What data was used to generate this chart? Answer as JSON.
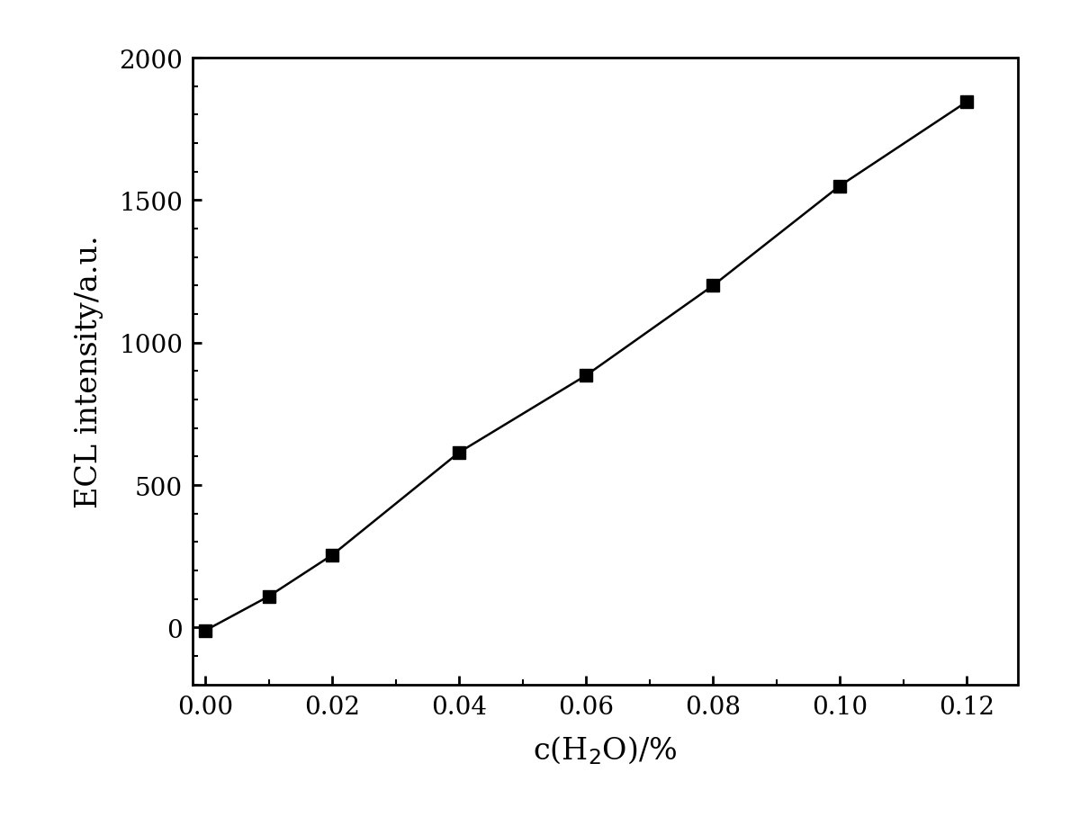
{
  "x": [
    0.0,
    0.01,
    0.02,
    0.04,
    0.06,
    0.08,
    0.1,
    0.12
  ],
  "y": [
    -10,
    110,
    255,
    615,
    885,
    1200,
    1550,
    1845
  ],
  "xlabel": "c(H$_2$O)/%",
  "ylabel": "ECL intensity/a.u.",
  "xlim": [
    -0.002,
    0.128
  ],
  "ylim": [
    -200,
    2000
  ],
  "xticks": [
    0.0,
    0.02,
    0.04,
    0.06,
    0.08,
    0.1,
    0.12
  ],
  "yticks": [
    0,
    500,
    1000,
    1500,
    2000
  ],
  "xtick_labels": [
    "0.00",
    "0.02",
    "0.04",
    "0.06",
    "0.08",
    "0.10",
    "0.12"
  ],
  "ytick_labels": [
    "0",
    "500",
    "1000",
    "1500",
    "2000"
  ],
  "marker": "s",
  "marker_color": "#000000",
  "marker_size": 10,
  "line_color": "#000000",
  "line_width": 1.8,
  "background_color": "#ffffff",
  "label_fontsize": 24,
  "tick_fontsize": 20,
  "figure_width": 11.9,
  "figure_height": 9.29,
  "dpi": 100
}
